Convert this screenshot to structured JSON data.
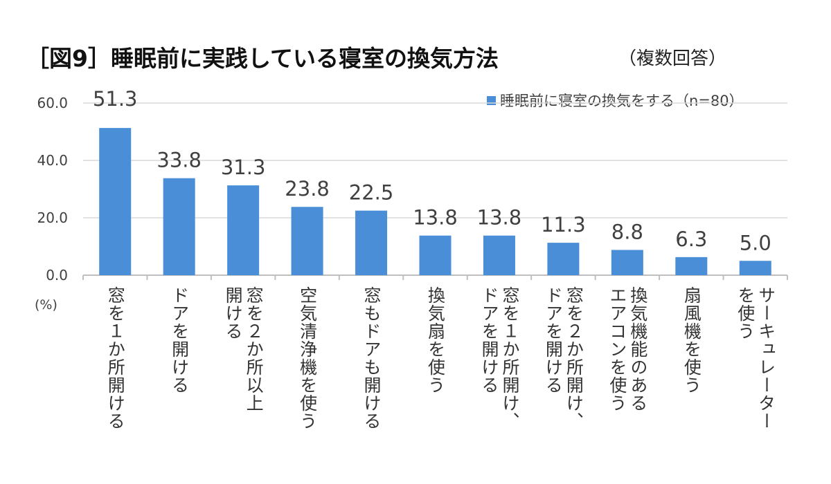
{
  "title": "［図9］睡眠前に実践している寝室の換気方法",
  "subtitle": "（複数回答）",
  "chart_data": {
    "type": "bar",
    "categories": [
      "窓を１か所開ける",
      "ドアを開ける",
      "窓を２か所以上\n開ける",
      "空気清浄機を使う",
      "窓もドアも開ける",
      "換気扇を使う",
      "窓を１か所開け、\nドアを開ける",
      "窓を２か所開け、\nドアを開ける",
      "換気機能のある\nエアコンを使う",
      "扇風機を使う",
      "サーキュレーター\nを使う"
    ],
    "series": [
      {
        "name": "睡眠前に寝室の換気をする（n=80）",
        "values": [
          51.3,
          33.8,
          31.3,
          23.8,
          22.5,
          13.8,
          13.8,
          11.3,
          8.8,
          6.3,
          5.0
        ],
        "color": "#4a8ed8"
      }
    ],
    "ylabel": "(%)",
    "ylim": [
      0,
      60
    ],
    "yticks": [
      "0.0",
      "20.0",
      "40.0",
      "60.0"
    ],
    "grid": true,
    "legend": "top-right"
  }
}
